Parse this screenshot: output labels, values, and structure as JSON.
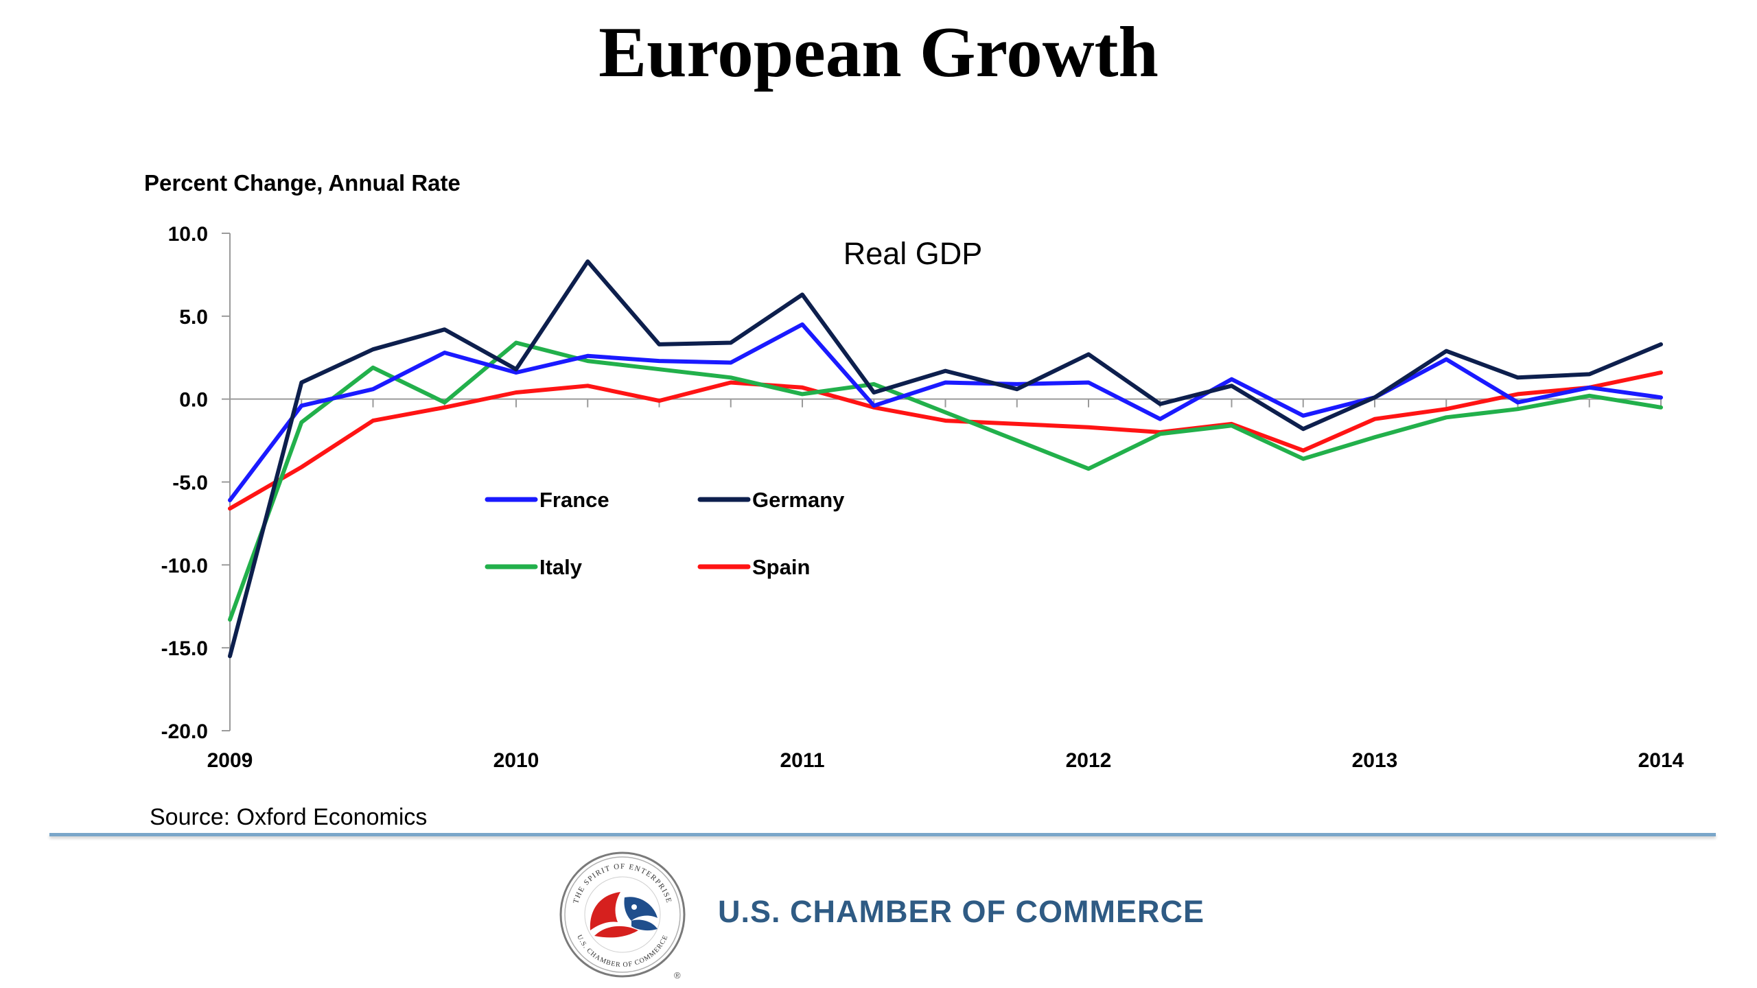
{
  "page_title": "European Growth",
  "source": "Source: Oxford Economics",
  "organization": "U.S. CHAMBER OF COMMERCE",
  "seal_text": {
    "outer_top": "THE SPIRIT OF ENTERPRISE",
    "outer_bottom": "U.S. CHAMBER OF COMMERCE",
    "registered": "®"
  },
  "colors": {
    "France": "#1a1aff",
    "Germany": "#0d1f4d",
    "Italy": "#22b04b",
    "Spain": "#ff1414",
    "divider": "#7aa6c9",
    "organization_text": "#2f5b84"
  },
  "chart_data": {
    "type": "line",
    "title": "Real GDP",
    "ylabel": "Percent Change, Annual Rate",
    "xlabel": "",
    "ylim": [
      -20,
      10
    ],
    "yticks": [
      "10.0",
      "5.0",
      "0.0",
      "-5.0",
      "-10.0",
      "-15.0",
      "-20.0"
    ],
    "xlim": [
      2009,
      2014
    ],
    "xticks": [
      "2009",
      "2010",
      "2011",
      "2012",
      "2013",
      "2014"
    ],
    "grid": false,
    "legend_position": "center-left, inside plot, 2x2",
    "x": [
      2009.0,
      2009.25,
      2009.5,
      2009.75,
      2010.0,
      2010.25,
      2010.5,
      2010.75,
      2011.0,
      2011.25,
      2011.5,
      2011.75,
      2012.0,
      2012.25,
      2012.5,
      2012.75,
      2013.0,
      2013.25,
      2013.5,
      2013.75,
      2014.0
    ],
    "series": [
      {
        "name": "France",
        "values": [
          -6.1,
          -0.4,
          0.6,
          2.8,
          1.6,
          2.6,
          2.3,
          2.2,
          4.5,
          -0.4,
          1.0,
          0.9,
          1.0,
          -1.2,
          1.2,
          -1.0,
          0.1,
          2.4,
          -0.2,
          0.7,
          0.1
        ]
      },
      {
        "name": "Germany",
        "values": [
          -15.5,
          1.0,
          3.0,
          4.2,
          1.8,
          8.3,
          3.3,
          3.4,
          6.3,
          0.4,
          1.7,
          0.6,
          2.7,
          -0.3,
          0.8,
          -1.8,
          0.1,
          2.9,
          1.3,
          1.5,
          3.3
        ]
      },
      {
        "name": "Italy",
        "values": [
          -13.3,
          -1.4,
          1.9,
          -0.2,
          3.4,
          2.3,
          1.8,
          1.3,
          0.3,
          0.9,
          -0.8,
          -2.5,
          -4.2,
          -2.1,
          -1.6,
          -3.6,
          -2.3,
          -1.1,
          -0.6,
          0.2,
          -0.5
        ]
      },
      {
        "name": "Spain",
        "values": [
          -6.6,
          -4.1,
          -1.3,
          -0.5,
          0.4,
          0.8,
          -0.1,
          1.0,
          0.7,
          -0.5,
          -1.3,
          -1.5,
          -1.7,
          -2.0,
          -1.5,
          -3.1,
          -1.2,
          -0.6,
          0.3,
          0.7,
          1.6
        ]
      }
    ]
  }
}
